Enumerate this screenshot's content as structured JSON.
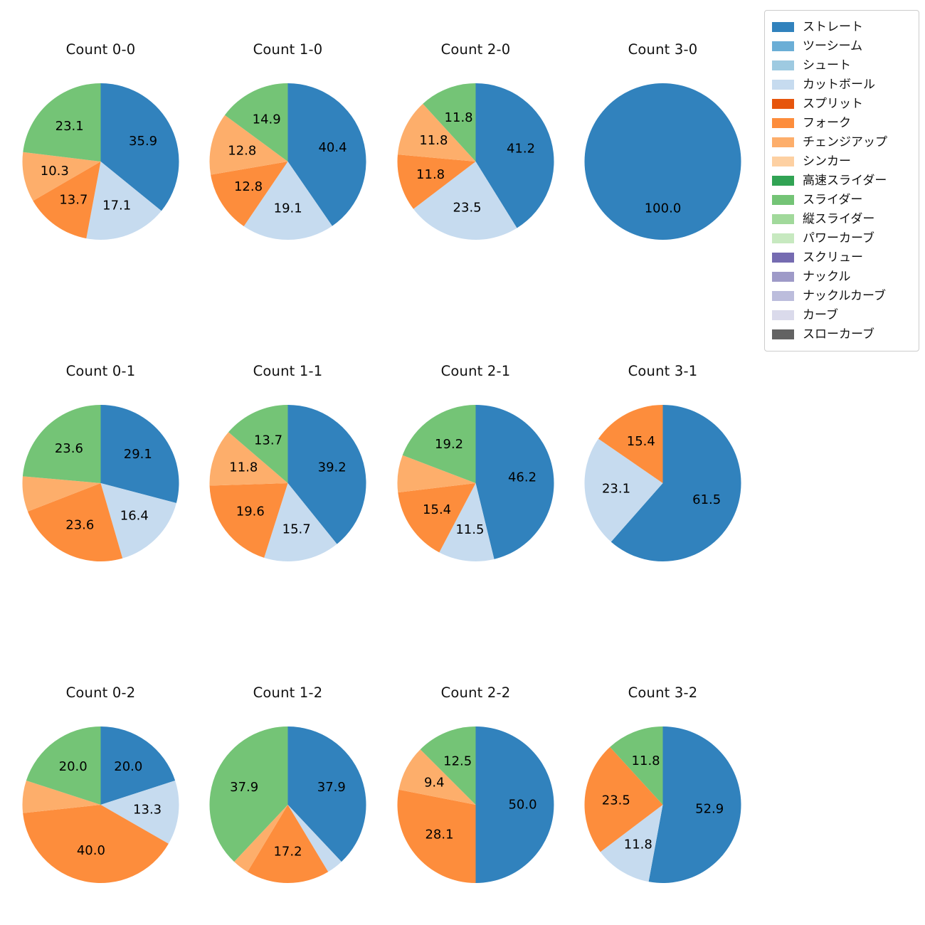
{
  "legend": {
    "items": [
      {
        "label": "ストレート",
        "color": "#3182bd"
      },
      {
        "label": "ツーシーム",
        "color": "#6baed6"
      },
      {
        "label": "シュート",
        "color": "#9ecae1"
      },
      {
        "label": "カットボール",
        "color": "#c6dbef"
      },
      {
        "label": "スプリット",
        "color": "#e6550d"
      },
      {
        "label": "フォーク",
        "color": "#fd8d3c"
      },
      {
        "label": "チェンジアップ",
        "color": "#fdae6b"
      },
      {
        "label": "シンカー",
        "color": "#fdd0a2"
      },
      {
        "label": "高速スライダー",
        "color": "#31a354"
      },
      {
        "label": "スライダー",
        "color": "#74c476"
      },
      {
        "label": "縦スライダー",
        "color": "#a1d99b"
      },
      {
        "label": "パワーカーブ",
        "color": "#c7e9c0"
      },
      {
        "label": "スクリュー",
        "color": "#756bb1"
      },
      {
        "label": "ナックル",
        "color": "#9e9ac8"
      },
      {
        "label": "ナックルカーブ",
        "color": "#bcbddc"
      },
      {
        "label": "カーブ",
        "color": "#dadaeb"
      },
      {
        "label": "スローカーブ",
        "color": "#636363"
      }
    ]
  },
  "chart_data": [
    {
      "type": "pie",
      "title": "Count 0-0",
      "unit": "percent",
      "start_angle_deg": 90,
      "direction": "clockwise",
      "legend_position": "upper-right-of-figure",
      "slices": [
        {
          "label": "ストレート",
          "value": 35.9,
          "pct_label": "35.9",
          "color": "#3182bd"
        },
        {
          "label": "カットボール",
          "value": 17.1,
          "pct_label": "17.1",
          "color": "#c6dbef"
        },
        {
          "label": "フォーク",
          "value": 13.7,
          "pct_label": "13.7",
          "color": "#fd8d3c"
        },
        {
          "label": "チェンジアップ",
          "value": 10.3,
          "pct_label": "10.3",
          "color": "#fdae6b"
        },
        {
          "label": "スライダー",
          "value": 23.1,
          "pct_label": "23.1",
          "color": "#74c476"
        }
      ]
    },
    {
      "type": "pie",
      "title": "Count 1-0",
      "unit": "percent",
      "start_angle_deg": 90,
      "direction": "clockwise",
      "slices": [
        {
          "label": "ストレート",
          "value": 40.4,
          "pct_label": "40.4",
          "color": "#3182bd"
        },
        {
          "label": "カットボール",
          "value": 19.1,
          "pct_label": "19.1",
          "color": "#c6dbef"
        },
        {
          "label": "フォーク",
          "value": 12.8,
          "pct_label": "12.8",
          "color": "#fd8d3c"
        },
        {
          "label": "チェンジアップ",
          "value": 12.8,
          "pct_label": "12.8",
          "color": "#fdae6b"
        },
        {
          "label": "スライダー",
          "value": 14.9,
          "pct_label": "14.9",
          "color": "#74c476"
        }
      ]
    },
    {
      "type": "pie",
      "title": "Count 2-0",
      "unit": "percent",
      "start_angle_deg": 90,
      "direction": "clockwise",
      "slices": [
        {
          "label": "ストレート",
          "value": 41.2,
          "pct_label": "41.2",
          "color": "#3182bd"
        },
        {
          "label": "カットボール",
          "value": 23.5,
          "pct_label": "23.5",
          "color": "#c6dbef"
        },
        {
          "label": "フォーク",
          "value": 11.8,
          "pct_label": "11.8",
          "color": "#fd8d3c"
        },
        {
          "label": "チェンジアップ",
          "value": 11.8,
          "pct_label": "11.8",
          "color": "#fdae6b"
        },
        {
          "label": "スライダー",
          "value": 11.8,
          "pct_label": "11.8",
          "color": "#74c476"
        }
      ]
    },
    {
      "type": "pie",
      "title": "Count 3-0",
      "unit": "percent",
      "start_angle_deg": 90,
      "direction": "clockwise",
      "slices": [
        {
          "label": "ストレート",
          "value": 100.0,
          "pct_label": "100.0",
          "color": "#3182bd"
        }
      ]
    },
    {
      "type": "pie",
      "title": "Count 0-1",
      "unit": "percent",
      "start_angle_deg": 90,
      "direction": "clockwise",
      "slices": [
        {
          "label": "ストレート",
          "value": 29.1,
          "pct_label": "29.1",
          "color": "#3182bd"
        },
        {
          "label": "カットボール",
          "value": 16.4,
          "pct_label": "16.4",
          "color": "#c6dbef"
        },
        {
          "label": "フォーク",
          "value": 23.6,
          "pct_label": "23.6",
          "color": "#fd8d3c"
        },
        {
          "label": "チェンジアップ",
          "value": 7.3,
          "pct_label": "",
          "color": "#fdae6b"
        },
        {
          "label": "スライダー",
          "value": 23.6,
          "pct_label": "23.6",
          "color": "#74c476"
        }
      ]
    },
    {
      "type": "pie",
      "title": "Count 1-1",
      "unit": "percent",
      "start_angle_deg": 90,
      "direction": "clockwise",
      "slices": [
        {
          "label": "ストレート",
          "value": 39.2,
          "pct_label": "39.2",
          "color": "#3182bd"
        },
        {
          "label": "カットボール",
          "value": 15.7,
          "pct_label": "15.7",
          "color": "#c6dbef"
        },
        {
          "label": "フォーク",
          "value": 19.6,
          "pct_label": "19.6",
          "color": "#fd8d3c"
        },
        {
          "label": "チェンジアップ",
          "value": 11.8,
          "pct_label": "11.8",
          "color": "#fdae6b"
        },
        {
          "label": "スライダー",
          "value": 13.7,
          "pct_label": "13.7",
          "color": "#74c476"
        }
      ]
    },
    {
      "type": "pie",
      "title": "Count 2-1",
      "unit": "percent",
      "start_angle_deg": 90,
      "direction": "clockwise",
      "slices": [
        {
          "label": "ストレート",
          "value": 46.2,
          "pct_label": "46.2",
          "color": "#3182bd"
        },
        {
          "label": "カットボール",
          "value": 11.5,
          "pct_label": "11.5",
          "color": "#c6dbef"
        },
        {
          "label": "フォーク",
          "value": 15.4,
          "pct_label": "15.4",
          "color": "#fd8d3c"
        },
        {
          "label": "チェンジアップ",
          "value": 7.7,
          "pct_label": "",
          "color": "#fdae6b"
        },
        {
          "label": "スライダー",
          "value": 19.2,
          "pct_label": "19.2",
          "color": "#74c476"
        }
      ]
    },
    {
      "type": "pie",
      "title": "Count 3-1",
      "unit": "percent",
      "start_angle_deg": 90,
      "direction": "clockwise",
      "slices": [
        {
          "label": "ストレート",
          "value": 61.5,
          "pct_label": "61.5",
          "color": "#3182bd"
        },
        {
          "label": "カットボール",
          "value": 23.1,
          "pct_label": "23.1",
          "color": "#c6dbef"
        },
        {
          "label": "フォーク",
          "value": 15.4,
          "pct_label": "15.4",
          "color": "#fd8d3c"
        }
      ]
    },
    {
      "type": "pie",
      "title": "Count 0-2",
      "unit": "percent",
      "start_angle_deg": 90,
      "direction": "clockwise",
      "slices": [
        {
          "label": "ストレート",
          "value": 20.0,
          "pct_label": "20.0",
          "color": "#3182bd"
        },
        {
          "label": "カットボール",
          "value": 13.3,
          "pct_label": "13.3",
          "color": "#c6dbef"
        },
        {
          "label": "フォーク",
          "value": 40.0,
          "pct_label": "40.0",
          "color": "#fd8d3c"
        },
        {
          "label": "チェンジアップ",
          "value": 6.7,
          "pct_label": "",
          "color": "#fdae6b"
        },
        {
          "label": "スライダー",
          "value": 20.0,
          "pct_label": "20.0",
          "color": "#74c476"
        }
      ]
    },
    {
      "type": "pie",
      "title": "Count 1-2",
      "unit": "percent",
      "start_angle_deg": 90,
      "direction": "clockwise",
      "slices": [
        {
          "label": "ストレート",
          "value": 37.9,
          "pct_label": "37.9",
          "color": "#3182bd"
        },
        {
          "label": "カットボール",
          "value": 3.4,
          "pct_label": "",
          "color": "#c6dbef"
        },
        {
          "label": "フォーク",
          "value": 17.2,
          "pct_label": "17.2",
          "color": "#fd8d3c"
        },
        {
          "label": "チェンジアップ",
          "value": 3.4,
          "pct_label": "",
          "color": "#fdae6b"
        },
        {
          "label": "スライダー",
          "value": 37.9,
          "pct_label": "37.9",
          "color": "#74c476"
        }
      ]
    },
    {
      "type": "pie",
      "title": "Count 2-2",
      "unit": "percent",
      "start_angle_deg": 90,
      "direction": "clockwise",
      "slices": [
        {
          "label": "ストレート",
          "value": 50.0,
          "pct_label": "50.0",
          "color": "#3182bd"
        },
        {
          "label": "フォーク",
          "value": 28.1,
          "pct_label": "28.1",
          "color": "#fd8d3c"
        },
        {
          "label": "チェンジアップ",
          "value": 9.4,
          "pct_label": "9.4",
          "color": "#fdae6b"
        },
        {
          "label": "スライダー",
          "value": 12.5,
          "pct_label": "12.5",
          "color": "#74c476"
        }
      ]
    },
    {
      "type": "pie",
      "title": "Count 3-2",
      "unit": "percent",
      "start_angle_deg": 90,
      "direction": "clockwise",
      "slices": [
        {
          "label": "ストレート",
          "value": 52.9,
          "pct_label": "52.9",
          "color": "#3182bd"
        },
        {
          "label": "カットボール",
          "value": 11.8,
          "pct_label": "11.8",
          "color": "#c6dbef"
        },
        {
          "label": "フォーク",
          "value": 23.5,
          "pct_label": "23.5",
          "color": "#fd8d3c"
        },
        {
          "label": "スライダー",
          "value": 11.8,
          "pct_label": "11.8",
          "color": "#74c476"
        }
      ]
    }
  ]
}
